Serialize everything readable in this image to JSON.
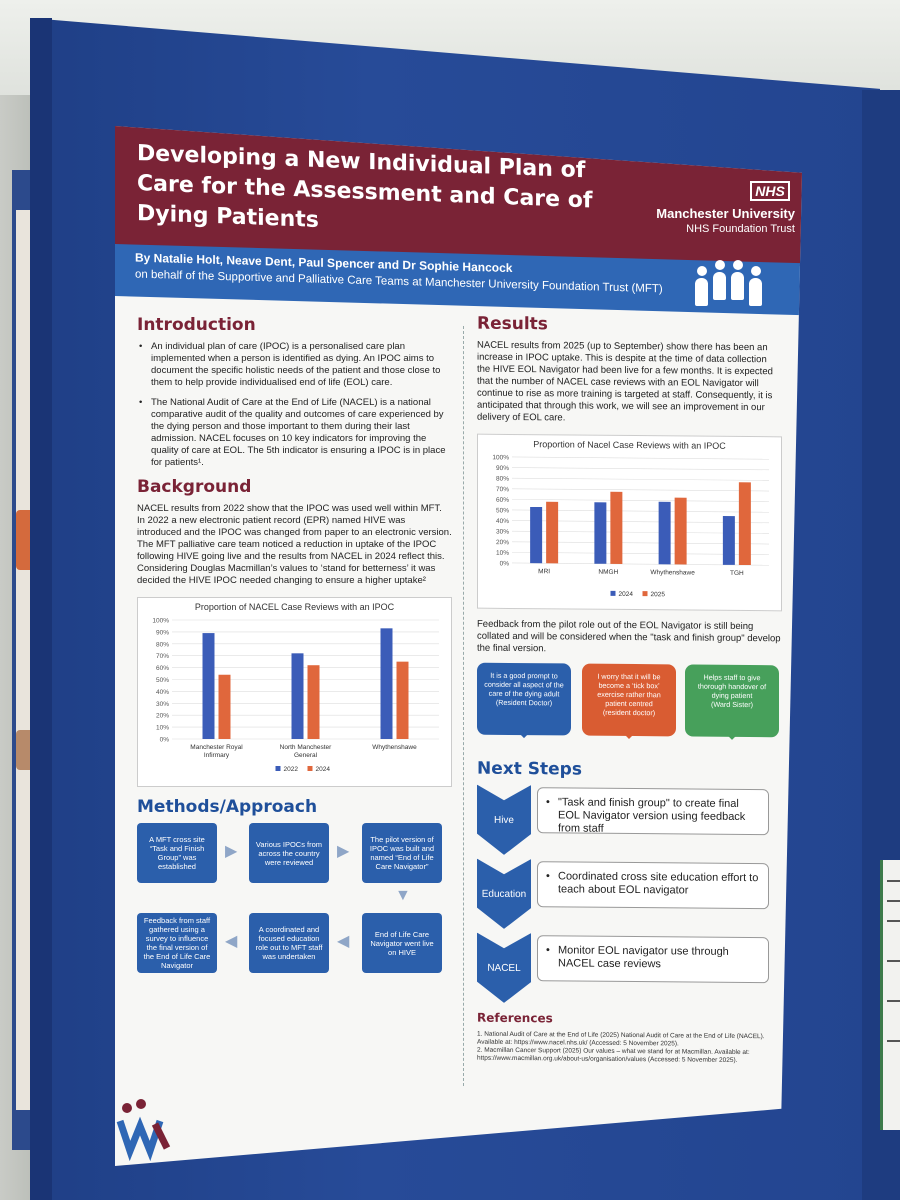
{
  "poster": {
    "title": "Developing a New Individual Plan of Care for the Assessment and Care of Dying Patients",
    "nhs_logo": "NHS",
    "org_name": "Manchester University",
    "org_sub": "NHS Foundation Trust",
    "authors": "By Natalie Holt, Neave Dent, Paul Spencer and Dr Sophie Hancock",
    "behalf": "on behalf of the Supportive and Palliative Care Teams at Manchester University Foundation Trust (MFT)"
  },
  "introduction": {
    "heading": "Introduction",
    "bullets": [
      "An individual plan of care (IPOC) is a personalised care plan implemented when a person is identified as dying. An IPOC aims to document the specific holistic needs of the patient and those close to them to help provide individualised end of life (EOL) care.",
      "The National Audit of Care at the End of Life (NACEL) is a national comparative audit of the quality and outcomes of care experienced by the dying person and those important to them during their last admission. NACEL focuses on 10 key indicators for improving the quality of care at EOL. The 5th indicator is ensuring a IPOC is in place for patients¹."
    ]
  },
  "background": {
    "heading": "Background",
    "text": "NACEL results from 2022 show that the IPOC was used well within MFT. In 2022 a new electronic patient record (EPR) named HIVE was introduced and the IPOC was changed from paper to an electronic version. The MFT palliative care team noticed a reduction in uptake of the IPOC following HIVE going live and the results from NACEL in 2024 reflect this. Considering Douglas Macmillan’s values to ‘stand for betterness’ it was decided the HIVE IPOC needed changing to ensure a higher uptake²"
  },
  "chart_data": [
    {
      "type": "bar",
      "title": "Proportion of NACEL Case Reviews with an IPOC",
      "categories": [
        "Manchester Royal Infirmary",
        "North Manchester General",
        "Whythenshawe"
      ],
      "series": [
        {
          "name": "2022",
          "values": [
            89,
            72,
            93
          ],
          "color": "#3b5cb8"
        },
        {
          "name": "2024",
          "values": [
            54,
            62,
            65
          ],
          "color": "#e0673c"
        }
      ],
      "ylim": [
        0,
        100
      ],
      "yticks": [
        "0%",
        "10%",
        "20%",
        "30%",
        "40%",
        "50%",
        "60%",
        "70%",
        "80%",
        "90%",
        "100%"
      ],
      "legend": "bottom"
    },
    {
      "type": "bar",
      "title": "Proportion of Nacel Case Reviews with an IPOC",
      "categories": [
        "MRI",
        "NMGH",
        "Whythenshawe",
        "TGH"
      ],
      "series": [
        {
          "name": "2024",
          "values": [
            53,
            58,
            59,
            46
          ],
          "color": "#3b5cb8"
        },
        {
          "name": "2025",
          "values": [
            58,
            68,
            63,
            78
          ],
          "color": "#e0673c"
        }
      ],
      "ylim": [
        0,
        100
      ],
      "yticks": [
        "0%",
        "10%",
        "20%",
        "30%",
        "40%",
        "50%",
        "60%",
        "70%",
        "80%",
        "90%",
        "100%"
      ],
      "legend": "bottom"
    }
  ],
  "methods": {
    "heading": "Methods/Approach",
    "steps": [
      "A MFT cross site “Task and Finish Group” was established",
      "Various IPOCs from across the country were reviewed",
      "The pilot version of IPOC was built and named “End of Life Care Navigator”",
      "End of Life Care Navigator went live on HIVE",
      "A coordinated and focused education role out to MFT staff was undertaken",
      "Feedback from staff gathered using a survey to influence the final version of the End of Life Care Navigator"
    ]
  },
  "results": {
    "heading": "Results",
    "text": "NACEL results from 2025 (up to September) show there has been an increase in IPOC uptake. This is despite at the time of data collection the HIVE EOL Navigator had been live for a few months. It is expected that the number of NACEL case reviews with an EOL Navigator will continue to rise as more training is targeted at staff. Consequently, it is anticipated that through this work, we will see an improvement in our delivery of EOL care.",
    "feedback": "Feedback from the pilot role out of the EOL Navigator is still being collated and will be considered when the \"task and finish group\" develop the final version.",
    "quotes": [
      {
        "text": "It is a good prompt to consider all aspect of the care of the dying adult",
        "who": "(Resident Doctor)",
        "color": "blue"
      },
      {
        "text": "I worry that it will be become a ‘tick box’ exercise rather than patient centred",
        "who": "(resident doctor)",
        "color": "orange"
      },
      {
        "text": "Helps staff to give thorough handover of dying patient",
        "who": "(Ward Sister)",
        "color": "green"
      }
    ]
  },
  "next_steps": {
    "heading": "Next Steps",
    "items": [
      {
        "label": "Hive",
        "text": "\"Task and finish group\" to create final EOL Navigator version using feedback from staff"
      },
      {
        "label": "Education",
        "text": "Coordinated cross site education effort to teach about EOL navigator"
      },
      {
        "label": "NACEL",
        "text": "Monitor EOL navigator use through NACEL case reviews"
      }
    ]
  },
  "references": {
    "heading": "References",
    "items": [
      "1. National Audit of Care at the End of Life (2025) National Audit of Care at the End of Life (NACEL). Available at: https://www.nacel.nhs.uk/ (Accessed: 5 November 2025).",
      "2. Macmillan Cancer Support (2025) Our values – what we stand for at Macmillan. Available at: https://www.macmillan.org.uk/about-us/organisation/values (Accessed: 5 November 2025)."
    ]
  }
}
